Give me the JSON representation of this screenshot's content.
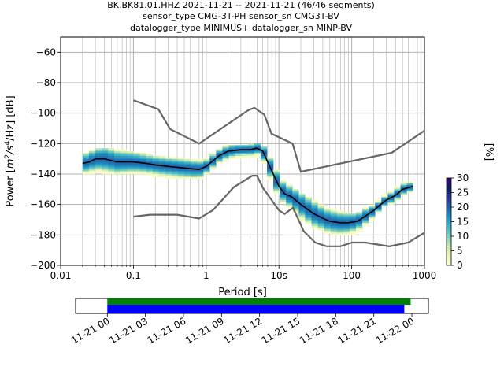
{
  "chart_data": [
    {
      "type": "heatmap",
      "title_lines": [
        "BK.BK81.01.HHZ   2021-11-21 -- 2021-11-21  (46/46 segments)",
        "sensor_type CMG-3T-PH sensor_sn CMG3T-BV",
        "datalogger_type MINIMUS+ datalogger_sn MINP-BV"
      ],
      "xlabel": "Period [s]",
      "ylabel_pre": "Power [",
      "ylabel_unit_m": "m",
      "ylabel_unit_exp2": "2",
      "ylabel_unit_s": "/s",
      "ylabel_unit_exp4": "4",
      "ylabel_post": "/Hz] [dB]",
      "x_scale": "log",
      "xlim": [
        0.01,
        1000
      ],
      "ylim": [
        -200,
        -50
      ],
      "x_ticks": [
        {
          "value": 0.01,
          "label": "0.01"
        },
        {
          "value": 0.1,
          "label": "0.1"
        },
        {
          "value": 1,
          "label": "1"
        },
        {
          "value": 10,
          "label": "10s"
        },
        {
          "value": 100,
          "label": "100"
        },
        {
          "value": 1000,
          "label": "1000"
        }
      ],
      "y_ticks": [
        {
          "value": -60,
          "label": "−60"
        },
        {
          "value": -80,
          "label": "−80"
        },
        {
          "value": -100,
          "label": "−100"
        },
        {
          "value": -120,
          "label": "−120"
        },
        {
          "value": -140,
          "label": "−140"
        },
        {
          "value": -160,
          "label": "−160"
        },
        {
          "value": -180,
          "label": "−180"
        },
        {
          "value": -200,
          "label": "−200"
        }
      ],
      "grid": true,
      "noise_models": {
        "high": {
          "periods": [
            0.1,
            0.22,
            0.32,
            0.8,
            3.8,
            4.6,
            6.3,
            7.9,
            15.4,
            20,
            354.8,
            1000
          ],
          "values": [
            -91.5,
            -97.4,
            -110.5,
            -120,
            -98,
            -96.5,
            -101,
            -113.5,
            -120,
            -138.5,
            -126,
            -111.5
          ]
        },
        "low": {
          "periods": [
            0.1,
            0.17,
            0.4,
            0.8,
            1.24,
            2.4,
            4.3,
            5,
            6,
            10,
            12,
            15.6,
            21.9,
            31.6,
            45,
            70,
            101,
            154,
            328,
            600,
            1000
          ],
          "values": [
            -168,
            -166.7,
            -166.7,
            -169.2,
            -163.7,
            -148.6,
            -141.1,
            -141.1,
            -149,
            -163.8,
            -166.2,
            -162.1,
            -177.5,
            -185,
            -187.5,
            -187.5,
            -185,
            -185,
            -187.5,
            -185,
            -178.5
          ]
        }
      },
      "median": {
        "periods": [
          0.02,
          0.025,
          0.03,
          0.04,
          0.06,
          0.1,
          0.15,
          0.2,
          0.3,
          0.5,
          0.8,
          1,
          1.5,
          2,
          3,
          4,
          5,
          6,
          8,
          10,
          12,
          15,
          20,
          30,
          40,
          50,
          70,
          90,
          120,
          150,
          200,
          250,
          300,
          400,
          500,
          700
        ],
        "values": [
          -133,
          -132,
          -130,
          -130,
          -132,
          -132,
          -133,
          -134,
          -135,
          -136,
          -137,
          -135,
          -128,
          -125,
          -124,
          -124,
          -123,
          -125,
          -138,
          -148,
          -153,
          -155,
          -160,
          -166,
          -169,
          -171,
          -172,
          -172,
          -171,
          -168,
          -164,
          -160,
          -157,
          -154,
          -150,
          -148
        ]
      },
      "pdf_band": {
        "periods": [
          0.02,
          0.025,
          0.03,
          0.04,
          0.06,
          0.1,
          0.15,
          0.2,
          0.3,
          0.5,
          0.8,
          1,
          1.5,
          2,
          3,
          4,
          5,
          6,
          8,
          10,
          12,
          15,
          20,
          30,
          40,
          50,
          70,
          90,
          120,
          150,
          200,
          250,
          300,
          400,
          500,
          700
        ],
        "lower": [
          -140,
          -140,
          -138,
          -140,
          -140,
          -140,
          -140,
          -141,
          -142,
          -143,
          -143,
          -140,
          -133,
          -130,
          -129,
          -129,
          -128,
          -131,
          -146,
          -156,
          -160,
          -163,
          -170,
          -175,
          -177,
          -179,
          -180,
          -180,
          -178,
          -174,
          -168,
          -163,
          -160,
          -158,
          -154,
          -151
        ],
        "upper": [
          -127,
          -126,
          -123,
          -123,
          -124,
          -126,
          -127,
          -128,
          -129,
          -130,
          -131,
          -130,
          -124,
          -121,
          -121,
          -121,
          -120,
          -121,
          -131,
          -141,
          -146,
          -148,
          -153,
          -157,
          -161,
          -163,
          -165,
          -166,
          -166,
          -163,
          -160,
          -156,
          -153,
          -150,
          -146,
          -145
        ]
      },
      "colorbar": {
        "label": "[%]",
        "min": 0,
        "max": 30,
        "ticks": [
          {
            "value": 0,
            "label": "0"
          },
          {
            "value": 5,
            "label": "5"
          },
          {
            "value": 10,
            "label": "10"
          },
          {
            "value": 15,
            "label": "15"
          },
          {
            "value": 20,
            "label": "20"
          },
          {
            "value": 25,
            "label": "25"
          },
          {
            "value": 30,
            "label": "30"
          }
        ],
        "colors": [
          "#ffffd9",
          "#edf8b1",
          "#c7e9b4",
          "#7fcdbb",
          "#41b6c4",
          "#1d91c0",
          "#225ea8",
          "#253494",
          "#081d58",
          "#3f007d"
        ]
      },
      "colors": {
        "noise_model": "#666666",
        "median": "#000000",
        "grid": "#b0b0b0"
      }
    },
    {
      "type": "timeline",
      "start": "2021-11-21 00:00",
      "end": "2021-11-22 00:00",
      "xlim_hours": [
        -2.5,
        25.3
      ],
      "ticks": [
        {
          "hours": 0,
          "label": "11-21 00"
        },
        {
          "hours": 3,
          "label": "11-21 03"
        },
        {
          "hours": 6,
          "label": "11-21 06"
        },
        {
          "hours": 9,
          "label": "11-21 09"
        },
        {
          "hours": 12,
          "label": "11-21 12"
        },
        {
          "hours": 15,
          "label": "11-21 15"
        },
        {
          "hours": 18,
          "label": "11-21 18"
        },
        {
          "hours": 21,
          "label": "11-21 21"
        },
        {
          "hours": 24,
          "label": "11-22 00"
        }
      ],
      "series": [
        {
          "color": "#008000",
          "start_hours": 0,
          "end_hours": 23.9
        },
        {
          "color": "#0000ff",
          "start_hours": 0,
          "end_hours": 23.4
        }
      ]
    }
  ]
}
